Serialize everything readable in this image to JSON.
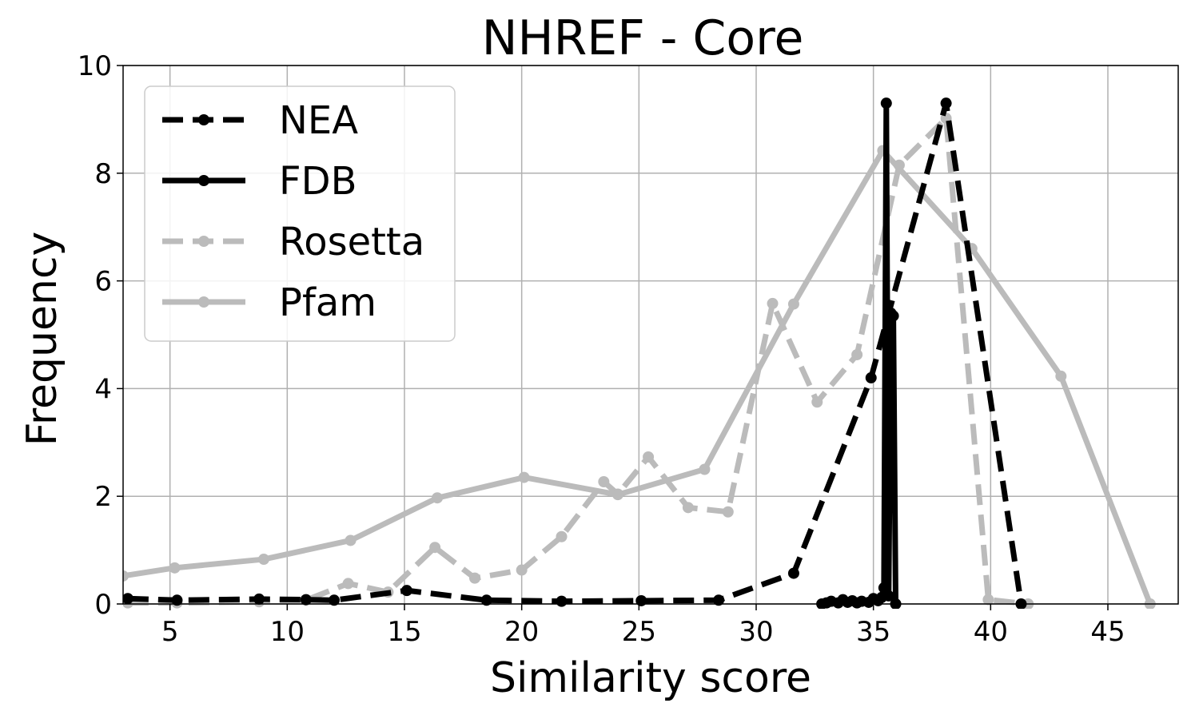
{
  "chart_data": {
    "type": "line",
    "title": "NHREF - Core",
    "xlabel": "Similarity score",
    "ylabel": "Frequency",
    "xlim": [
      3,
      48
    ],
    "ylim": [
      0,
      10
    ],
    "xticks": [
      5,
      10,
      15,
      20,
      25,
      30,
      35,
      40,
      45
    ],
    "yticks": [
      0,
      2,
      4,
      6,
      8,
      10
    ],
    "grid": true,
    "legend_position": "top-left",
    "series": [
      {
        "name": "NEA",
        "color": "#000000",
        "style": "dashed",
        "x": [
          3.2,
          5.3,
          8.8,
          10.8,
          12.0,
          15.1,
          18.5,
          21.7,
          25.1,
          28.4,
          31.6,
          34.9,
          38.1,
          41.3
        ],
        "y": [
          0.1,
          0.07,
          0.09,
          0.08,
          0.07,
          0.25,
          0.07,
          0.05,
          0.06,
          0.07,
          0.57,
          4.2,
          9.3,
          0.0
        ]
      },
      {
        "name": "FDB",
        "color": "#000000",
        "style": "solid",
        "x": [
          32.8,
          33.0,
          33.2,
          33.5,
          33.7,
          33.9,
          34.1,
          34.3,
          34.5,
          34.8,
          35.0,
          35.2,
          35.35,
          35.45,
          35.55,
          35.65,
          35.75,
          35.85,
          35.95
        ],
        "y": [
          0.0,
          0.02,
          0.05,
          0.02,
          0.08,
          0.03,
          0.06,
          0.02,
          0.05,
          0.03,
          0.1,
          0.06,
          0.12,
          0.3,
          9.3,
          0.15,
          5.4,
          5.35,
          0.0
        ]
      },
      {
        "name": "Rosetta",
        "color": "#bbbbbb",
        "style": "dashed",
        "x": [
          3.2,
          5.3,
          8.8,
          10.8,
          12.6,
          14.3,
          16.3,
          18.0,
          20.0,
          21.7,
          23.5,
          24.1,
          25.4,
          27.1,
          28.8,
          30.7,
          32.6,
          34.3,
          36.1,
          38.1,
          39.9,
          41.6
        ],
        "y": [
          0.02,
          0.02,
          0.04,
          0.07,
          0.38,
          0.22,
          1.05,
          0.48,
          0.63,
          1.25,
          2.27,
          2.04,
          2.73,
          1.79,
          1.71,
          5.58,
          3.75,
          4.63,
          8.15,
          9.02,
          0.08,
          0.0
        ]
      },
      {
        "name": "Pfam",
        "color": "#bbbbbb",
        "style": "solid",
        "x": [
          3.0,
          5.2,
          9.0,
          12.7,
          16.4,
          20.1,
          24.1,
          27.8,
          31.6,
          35.4,
          39.2,
          43.0,
          46.8
        ],
        "y": [
          0.52,
          0.67,
          0.83,
          1.18,
          1.97,
          2.35,
          2.03,
          2.5,
          5.57,
          8.42,
          6.6,
          4.23,
          0.0
        ]
      }
    ]
  }
}
